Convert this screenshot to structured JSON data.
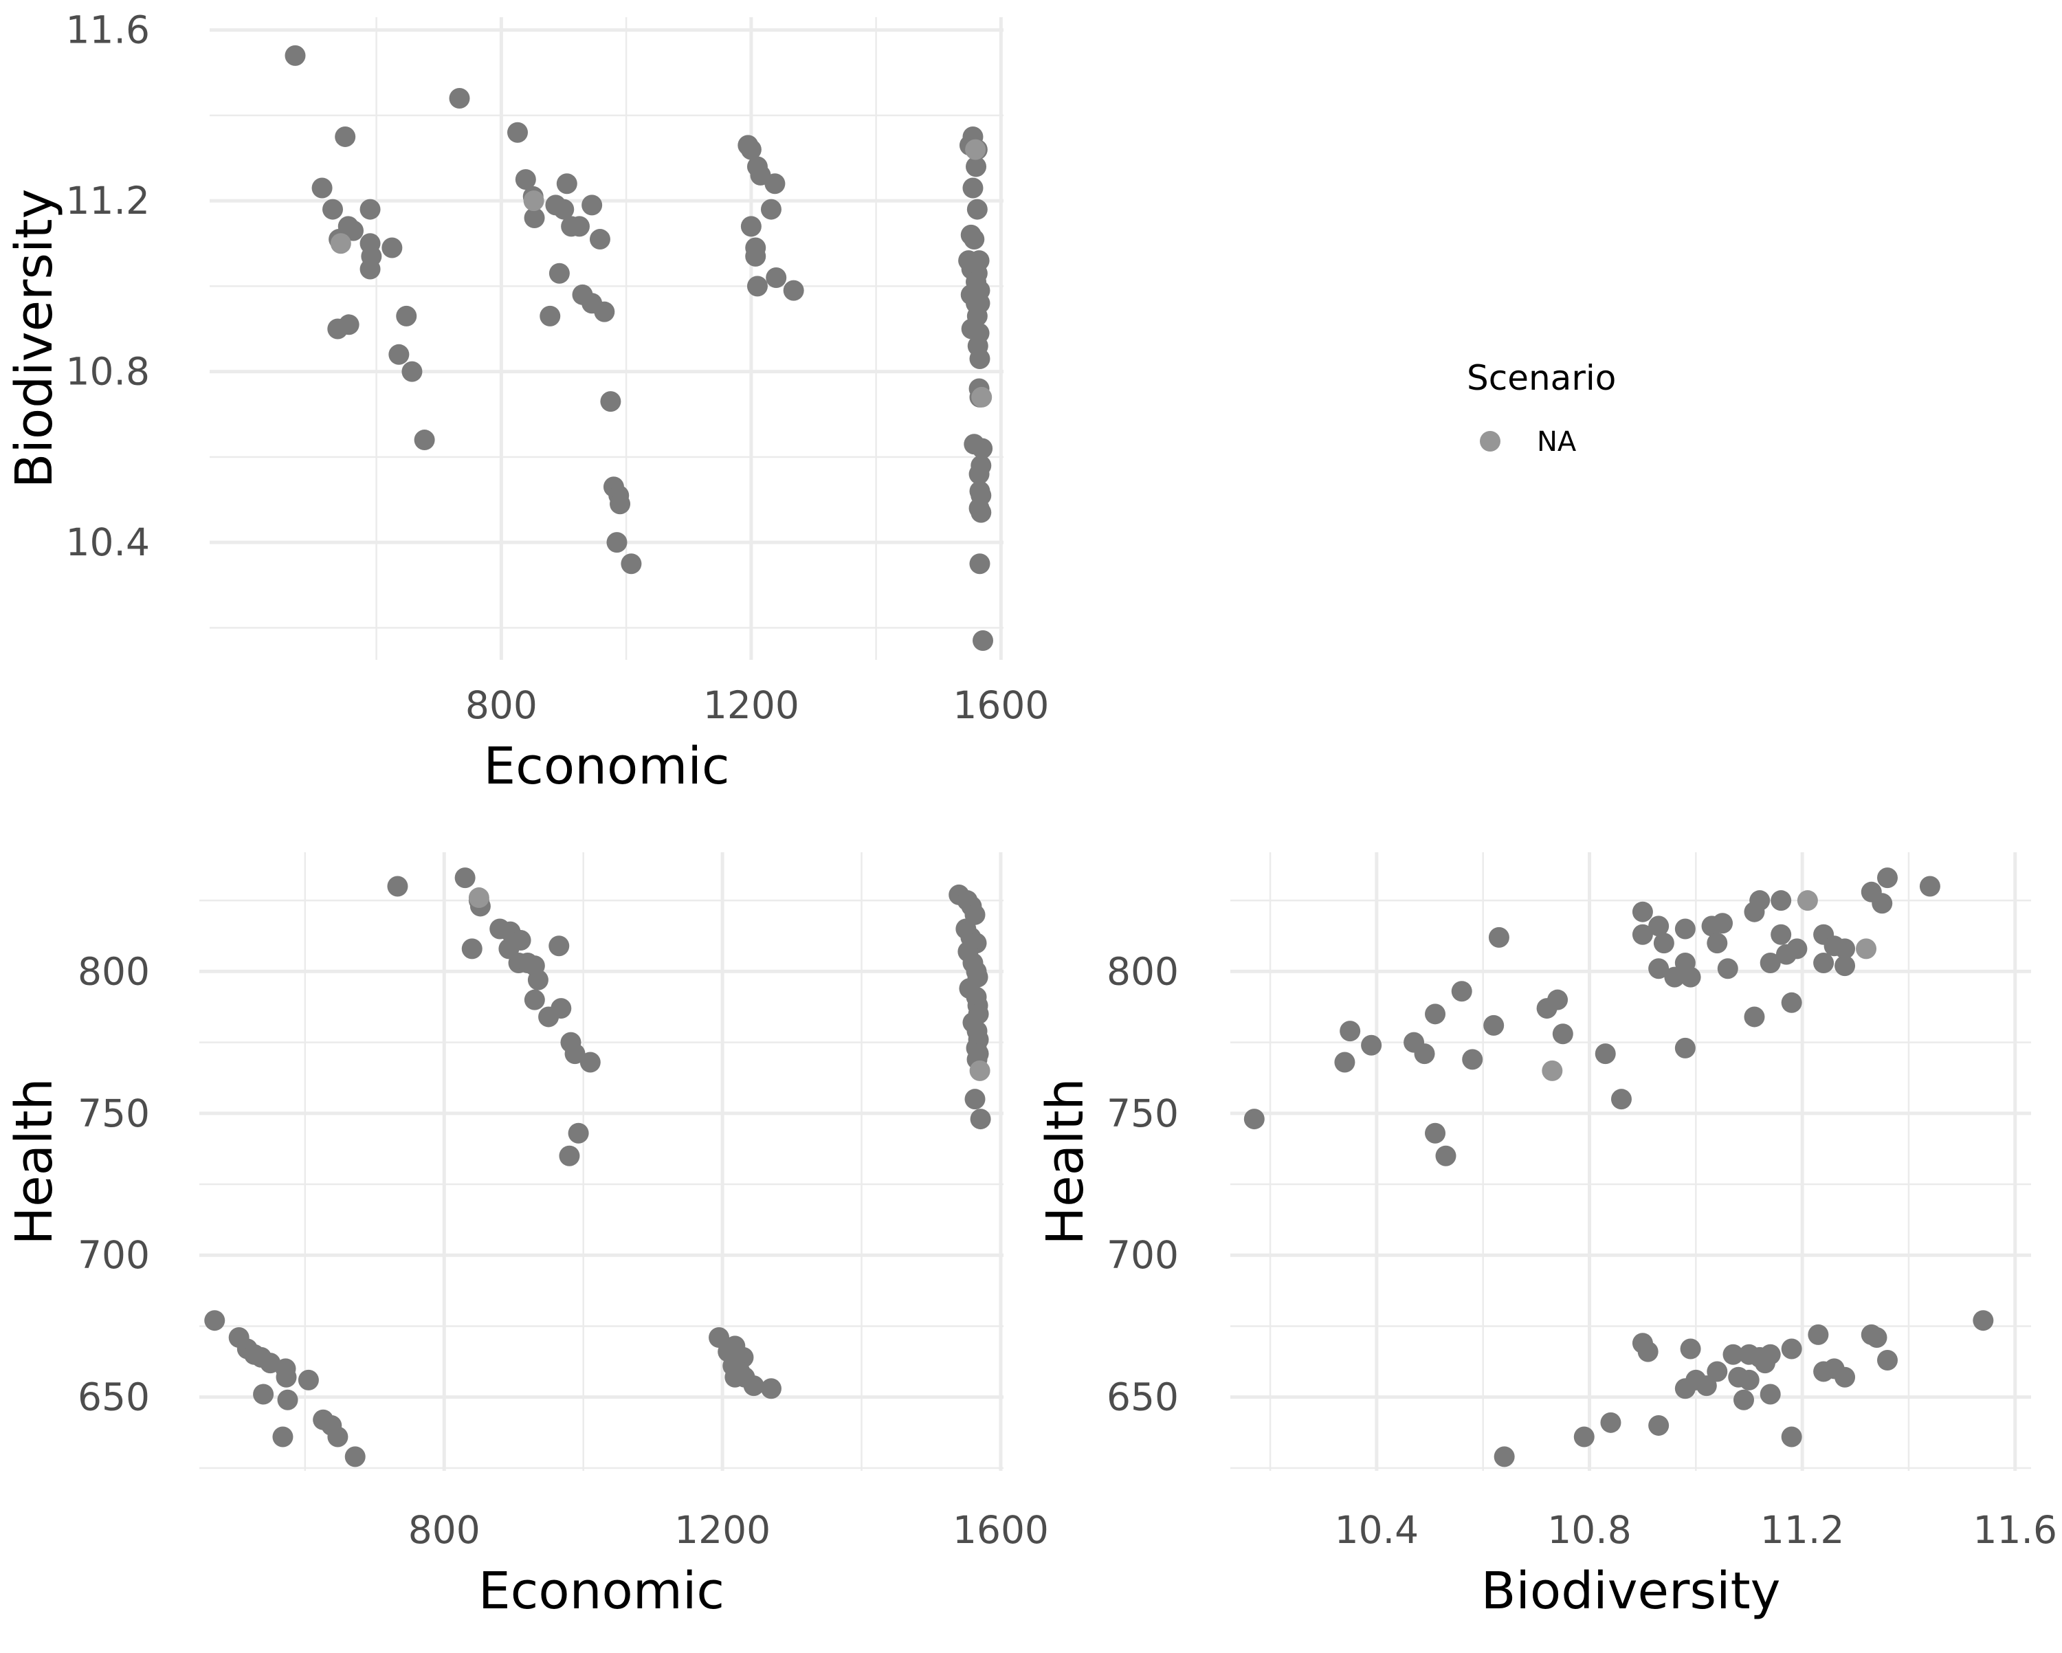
{
  "legend": {
    "title": "Scenario",
    "entries": [
      {
        "label": "NA",
        "color": "#969696"
      }
    ]
  },
  "chart_data": [
    {
      "type": "scatter",
      "xlabel": "Economic",
      "ylabel": "Biodiversity",
      "xlim": [
        333,
        1604
      ],
      "ylim": [
        10.125,
        11.63
      ],
      "xticks": [
        800,
        1200,
        1600
      ],
      "xtick_labels": [
        "800",
        "1200",
        "1600"
      ],
      "xminor": [
        600,
        1000,
        1400
      ],
      "yticks": [
        10.4,
        10.8,
        11.2,
        11.6
      ],
      "ytick_labels": [
        "10.4",
        "10.8",
        "11.2",
        "11.6"
      ],
      "yminor": [
        10.2,
        10.6,
        11.0,
        11.4
      ],
      "point_color": "#7a7a7a",
      "na_color": "#969696",
      "points": [
        [
          470,
          11.54
        ],
        [
          513,
          11.23
        ],
        [
          530,
          11.18
        ],
        [
          550,
          11.35
        ],
        [
          540,
          11.11
        ],
        [
          555,
          11.14
        ],
        [
          563,
          11.13
        ],
        [
          590,
          11.18
        ],
        [
          590,
          11.1
        ],
        [
          592,
          11.07
        ],
        [
          590,
          11.04
        ],
        [
          625,
          11.09
        ],
        [
          538,
          10.9
        ],
        [
          556,
          10.91
        ],
        [
          648,
          10.93
        ],
        [
          636,
          10.84
        ],
        [
          657,
          10.8
        ],
        [
          677,
          10.64
        ],
        [
          733,
          11.44
        ],
        [
          826,
          11.36
        ],
        [
          839,
          11.25
        ],
        [
          851,
          11.21
        ],
        [
          853,
          11.16
        ],
        [
          887,
          11.19
        ],
        [
          900,
          11.18
        ],
        [
          905,
          11.24
        ],
        [
          912,
          11.14
        ],
        [
          925,
          11.14
        ],
        [
          945,
          11.19
        ],
        [
          958,
          11.11
        ],
        [
          893,
          11.03
        ],
        [
          930,
          10.98
        ],
        [
          945,
          10.96
        ],
        [
          965,
          10.94
        ],
        [
          878,
          10.93
        ],
        [
          975,
          10.73
        ],
        [
          980,
          10.53
        ],
        [
          988,
          10.51
        ],
        [
          990,
          10.49
        ],
        [
          985,
          10.4
        ],
        [
          1008,
          10.35
        ],
        [
          1195,
          11.33
        ],
        [
          1200,
          11.32
        ],
        [
          1210,
          11.28
        ],
        [
          1215,
          11.26
        ],
        [
          1238,
          11.24
        ],
        [
          1232,
          11.18
        ],
        [
          1200,
          11.14
        ],
        [
          1207,
          11.09
        ],
        [
          1207,
          11.07
        ],
        [
          1210,
          11.0
        ],
        [
          1240,
          11.02
        ],
        [
          1268,
          10.99
        ],
        [
          1550,
          11.33
        ],
        [
          1555,
          11.35
        ],
        [
          1562,
          11.32
        ],
        [
          1560,
          11.28
        ],
        [
          1555,
          11.23
        ],
        [
          1562,
          11.18
        ],
        [
          1552,
          11.12
        ],
        [
          1557,
          11.11
        ],
        [
          1548,
          11.06
        ],
        [
          1565,
          11.06
        ],
        [
          1553,
          11.04
        ],
        [
          1562,
          11.03
        ],
        [
          1560,
          11.01
        ],
        [
          1566,
          10.99
        ],
        [
          1552,
          10.98
        ],
        [
          1560,
          10.96
        ],
        [
          1566,
          10.96
        ],
        [
          1562,
          10.93
        ],
        [
          1553,
          10.9
        ],
        [
          1565,
          10.89
        ],
        [
          1563,
          10.86
        ],
        [
          1566,
          10.83
        ],
        [
          1565,
          10.76
        ],
        [
          1566,
          10.74
        ],
        [
          1557,
          10.63
        ],
        [
          1570,
          10.62
        ],
        [
          1568,
          10.58
        ],
        [
          1565,
          10.56
        ],
        [
          1566,
          10.52
        ],
        [
          1568,
          10.51
        ],
        [
          1565,
          10.48
        ],
        [
          1568,
          10.47
        ],
        [
          1566,
          10.35
        ],
        [
          1571,
          10.17
        ]
      ],
      "na_points": [
        [
          852,
          11.2
        ],
        [
          543,
          11.1
        ],
        [
          1559,
          11.32
        ],
        [
          1569,
          10.74
        ]
      ]
    },
    {
      "type": "scatter",
      "xlabel": "Economic",
      "ylabel": "Health",
      "xlim": [
        448,
        1604
      ],
      "ylim": [
        624,
        842
      ],
      "xticks": [
        800,
        1200,
        1600
      ],
      "xtick_labels": [
        "800",
        "1200",
        "1600"
      ],
      "xminor": [
        600,
        1000,
        1400
      ],
      "yticks": [
        650,
        700,
        750,
        800
      ],
      "ytick_labels": [
        "650",
        "700",
        "750",
        "800"
      ],
      "yminor": [
        625,
        675,
        725,
        775,
        825
      ],
      "point_color": "#7a7a7a",
      "na_color": "#969696",
      "points": [
        [
          470,
          677
        ],
        [
          505,
          671
        ],
        [
          517,
          667
        ],
        [
          527,
          665
        ],
        [
          537,
          664
        ],
        [
          550,
          662
        ],
        [
          540,
          651
        ],
        [
          572,
          660
        ],
        [
          573,
          657
        ],
        [
          575,
          649
        ],
        [
          568,
          636
        ],
        [
          605,
          656
        ],
        [
          626,
          642
        ],
        [
          638,
          640
        ],
        [
          647,
          636
        ],
        [
          672,
          629
        ],
        [
          733,
          830
        ],
        [
          830,
          833
        ],
        [
          850,
          825
        ],
        [
          852,
          823
        ],
        [
          840,
          808
        ],
        [
          880,
          815
        ],
        [
          895,
          814
        ],
        [
          910,
          811
        ],
        [
          893,
          808
        ],
        [
          907,
          803
        ],
        [
          920,
          803
        ],
        [
          930,
          802
        ],
        [
          935,
          797
        ],
        [
          965,
          809
        ],
        [
          930,
          790
        ],
        [
          950,
          784
        ],
        [
          968,
          787
        ],
        [
          982,
          775
        ],
        [
          988,
          771
        ],
        [
          1010,
          768
        ],
        [
          993,
          743
        ],
        [
          980,
          735
        ],
        [
          1195,
          671
        ],
        [
          1208,
          666
        ],
        [
          1218,
          668
        ],
        [
          1230,
          664
        ],
        [
          1215,
          661
        ],
        [
          1225,
          659
        ],
        [
          1232,
          657
        ],
        [
          1218,
          657
        ],
        [
          1245,
          654
        ],
        [
          1270,
          653
        ],
        [
          1540,
          827
        ],
        [
          1552,
          825
        ],
        [
          1558,
          823
        ],
        [
          1563,
          820
        ],
        [
          1550,
          815
        ],
        [
          1557,
          812
        ],
        [
          1565,
          810
        ],
        [
          1553,
          807
        ],
        [
          1560,
          803
        ],
        [
          1565,
          800
        ],
        [
          1567,
          798
        ],
        [
          1555,
          794
        ],
        [
          1565,
          791
        ],
        [
          1567,
          788
        ],
        [
          1568,
          785
        ],
        [
          1560,
          782
        ],
        [
          1566,
          779
        ],
        [
          1568,
          776
        ],
        [
          1565,
          773
        ],
        [
          1568,
          771
        ],
        [
          1566,
          769
        ],
        [
          1563,
          755
        ],
        [
          1571,
          748
        ]
      ],
      "na_points": [
        [
          850,
          826
        ],
        [
          1570,
          765
        ]
      ]
    },
    {
      "type": "scatter",
      "xlabel": "Biodiversity",
      "ylabel": "Health",
      "xlim": [
        10.125,
        11.63
      ],
      "ylim": [
        624,
        842
      ],
      "xticks": [
        10.4,
        10.8,
        11.2,
        11.6
      ],
      "xtick_labels": [
        "10.4",
        "10.8",
        "11.2",
        "11.6"
      ],
      "xminor": [
        10.2,
        10.6,
        11.0,
        11.4
      ],
      "yticks": [
        650,
        700,
        750,
        800
      ],
      "ytick_labels": [
        "650",
        "700",
        "750",
        "800"
      ],
      "yminor": [
        625,
        675,
        725,
        775,
        825
      ],
      "point_color": "#7a7a7a",
      "na_color": "#969696",
      "points": [
        [
          10.17,
          748
        ],
        [
          10.35,
          779
        ],
        [
          10.34,
          768
        ],
        [
          10.39,
          774
        ],
        [
          10.47,
          775
        ],
        [
          10.49,
          771
        ],
        [
          10.51,
          785
        ],
        [
          10.56,
          793
        ],
        [
          10.58,
          769
        ],
        [
          10.51,
          743
        ],
        [
          10.53,
          735
        ],
        [
          10.63,
          812
        ],
        [
          10.62,
          781
        ],
        [
          10.72,
          787
        ],
        [
          10.74,
          790
        ],
        [
          10.75,
          778
        ],
        [
          10.83,
          771
        ],
        [
          10.86,
          755
        ],
        [
          10.9,
          821
        ],
        [
          10.9,
          813
        ],
        [
          10.93,
          816
        ],
        [
          10.94,
          810
        ],
        [
          10.93,
          801
        ],
        [
          10.96,
          798
        ],
        [
          10.98,
          815
        ],
        [
          10.98,
          803
        ],
        [
          10.99,
          798
        ],
        [
          10.98,
          773
        ],
        [
          11.03,
          816
        ],
        [
          11.04,
          810
        ],
        [
          11.05,
          817
        ],
        [
          11.06,
          801
        ],
        [
          11.11,
          821
        ],
        [
          11.12,
          825
        ],
        [
          11.16,
          825
        ],
        [
          11.14,
          803
        ],
        [
          11.16,
          813
        ],
        [
          11.17,
          806
        ],
        [
          11.19,
          808
        ],
        [
          11.24,
          813
        ],
        [
          11.24,
          803
        ],
        [
          11.26,
          809
        ],
        [
          11.28,
          808
        ],
        [
          11.28,
          802
        ],
        [
          11.33,
          828
        ],
        [
          11.35,
          824
        ],
        [
          11.36,
          833
        ],
        [
          11.44,
          830
        ],
        [
          11.11,
          784
        ],
        [
          11.18,
          789
        ],
        [
          10.9,
          669
        ],
        [
          10.91,
          666
        ],
        [
          10.99,
          667
        ],
        [
          10.98,
          653
        ],
        [
          11.0,
          656
        ],
        [
          11.02,
          654
        ],
        [
          11.04,
          659
        ],
        [
          11.07,
          665
        ],
        [
          11.08,
          657
        ],
        [
          11.1,
          665
        ],
        [
          11.1,
          656
        ],
        [
          11.12,
          664
        ],
        [
          11.13,
          662
        ],
        [
          11.14,
          665
        ],
        [
          11.18,
          667
        ],
        [
          11.14,
          651
        ],
        [
          11.23,
          672
        ],
        [
          11.24,
          659
        ],
        [
          11.26,
          660
        ],
        [
          11.28,
          657
        ],
        [
          11.33,
          672
        ],
        [
          11.34,
          671
        ],
        [
          11.36,
          663
        ],
        [
          11.54,
          677
        ],
        [
          10.64,
          629
        ],
        [
          10.79,
          636
        ],
        [
          10.84,
          641
        ],
        [
          10.93,
          640
        ],
        [
          11.09,
          649
        ],
        [
          11.18,
          636
        ]
      ],
      "na_points": [
        [
          10.73,
          765
        ],
        [
          11.21,
          825
        ],
        [
          11.32,
          808
        ]
      ]
    }
  ]
}
